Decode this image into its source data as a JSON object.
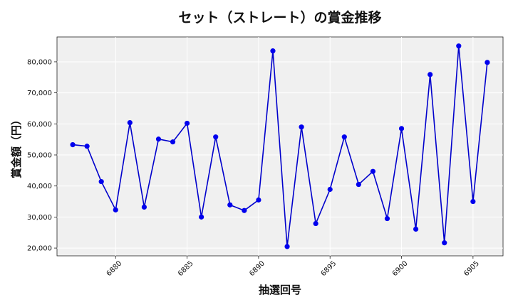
{
  "chart_data": {
    "type": "line",
    "title": "セット（ストレート）の賞金推移",
    "xlabel": "抽選回号",
    "ylabel": "賞金額（円）",
    "xlim": [
      6875.9,
      6907.1
    ],
    "ylim": [
      17500,
      88000
    ],
    "xticks": [
      6880,
      6885,
      6890,
      6895,
      6900,
      6905
    ],
    "yticks": [
      20000,
      30000,
      40000,
      50000,
      60000,
      70000,
      80000
    ],
    "ytick_labels": [
      "20,000",
      "30,000",
      "40,000",
      "50,000",
      "60,000",
      "70,000",
      "80,000"
    ],
    "grid": true,
    "line_color": "#0000cc",
    "marker_color": "#0000ee",
    "background_color": "#f0f0f0",
    "x": [
      6877,
      6878,
      6879,
      6880,
      6881,
      6882,
      6883,
      6884,
      6885,
      6886,
      6887,
      6888,
      6889,
      6890,
      6891,
      6892,
      6893,
      6894,
      6895,
      6896,
      6897,
      6898,
      6899,
      6900,
      6901,
      6902,
      6903,
      6904,
      6905,
      6906
    ],
    "y": [
      53300,
      52800,
      41400,
      32300,
      60400,
      33200,
      55100,
      54200,
      60200,
      30000,
      55800,
      33900,
      32100,
      35500,
      83500,
      20500,
      59000,
      27900,
      38900,
      55800,
      40500,
      44700,
      29500,
      58500,
      26100,
      75900,
      21700,
      85100,
      35000,
      79800
    ]
  }
}
